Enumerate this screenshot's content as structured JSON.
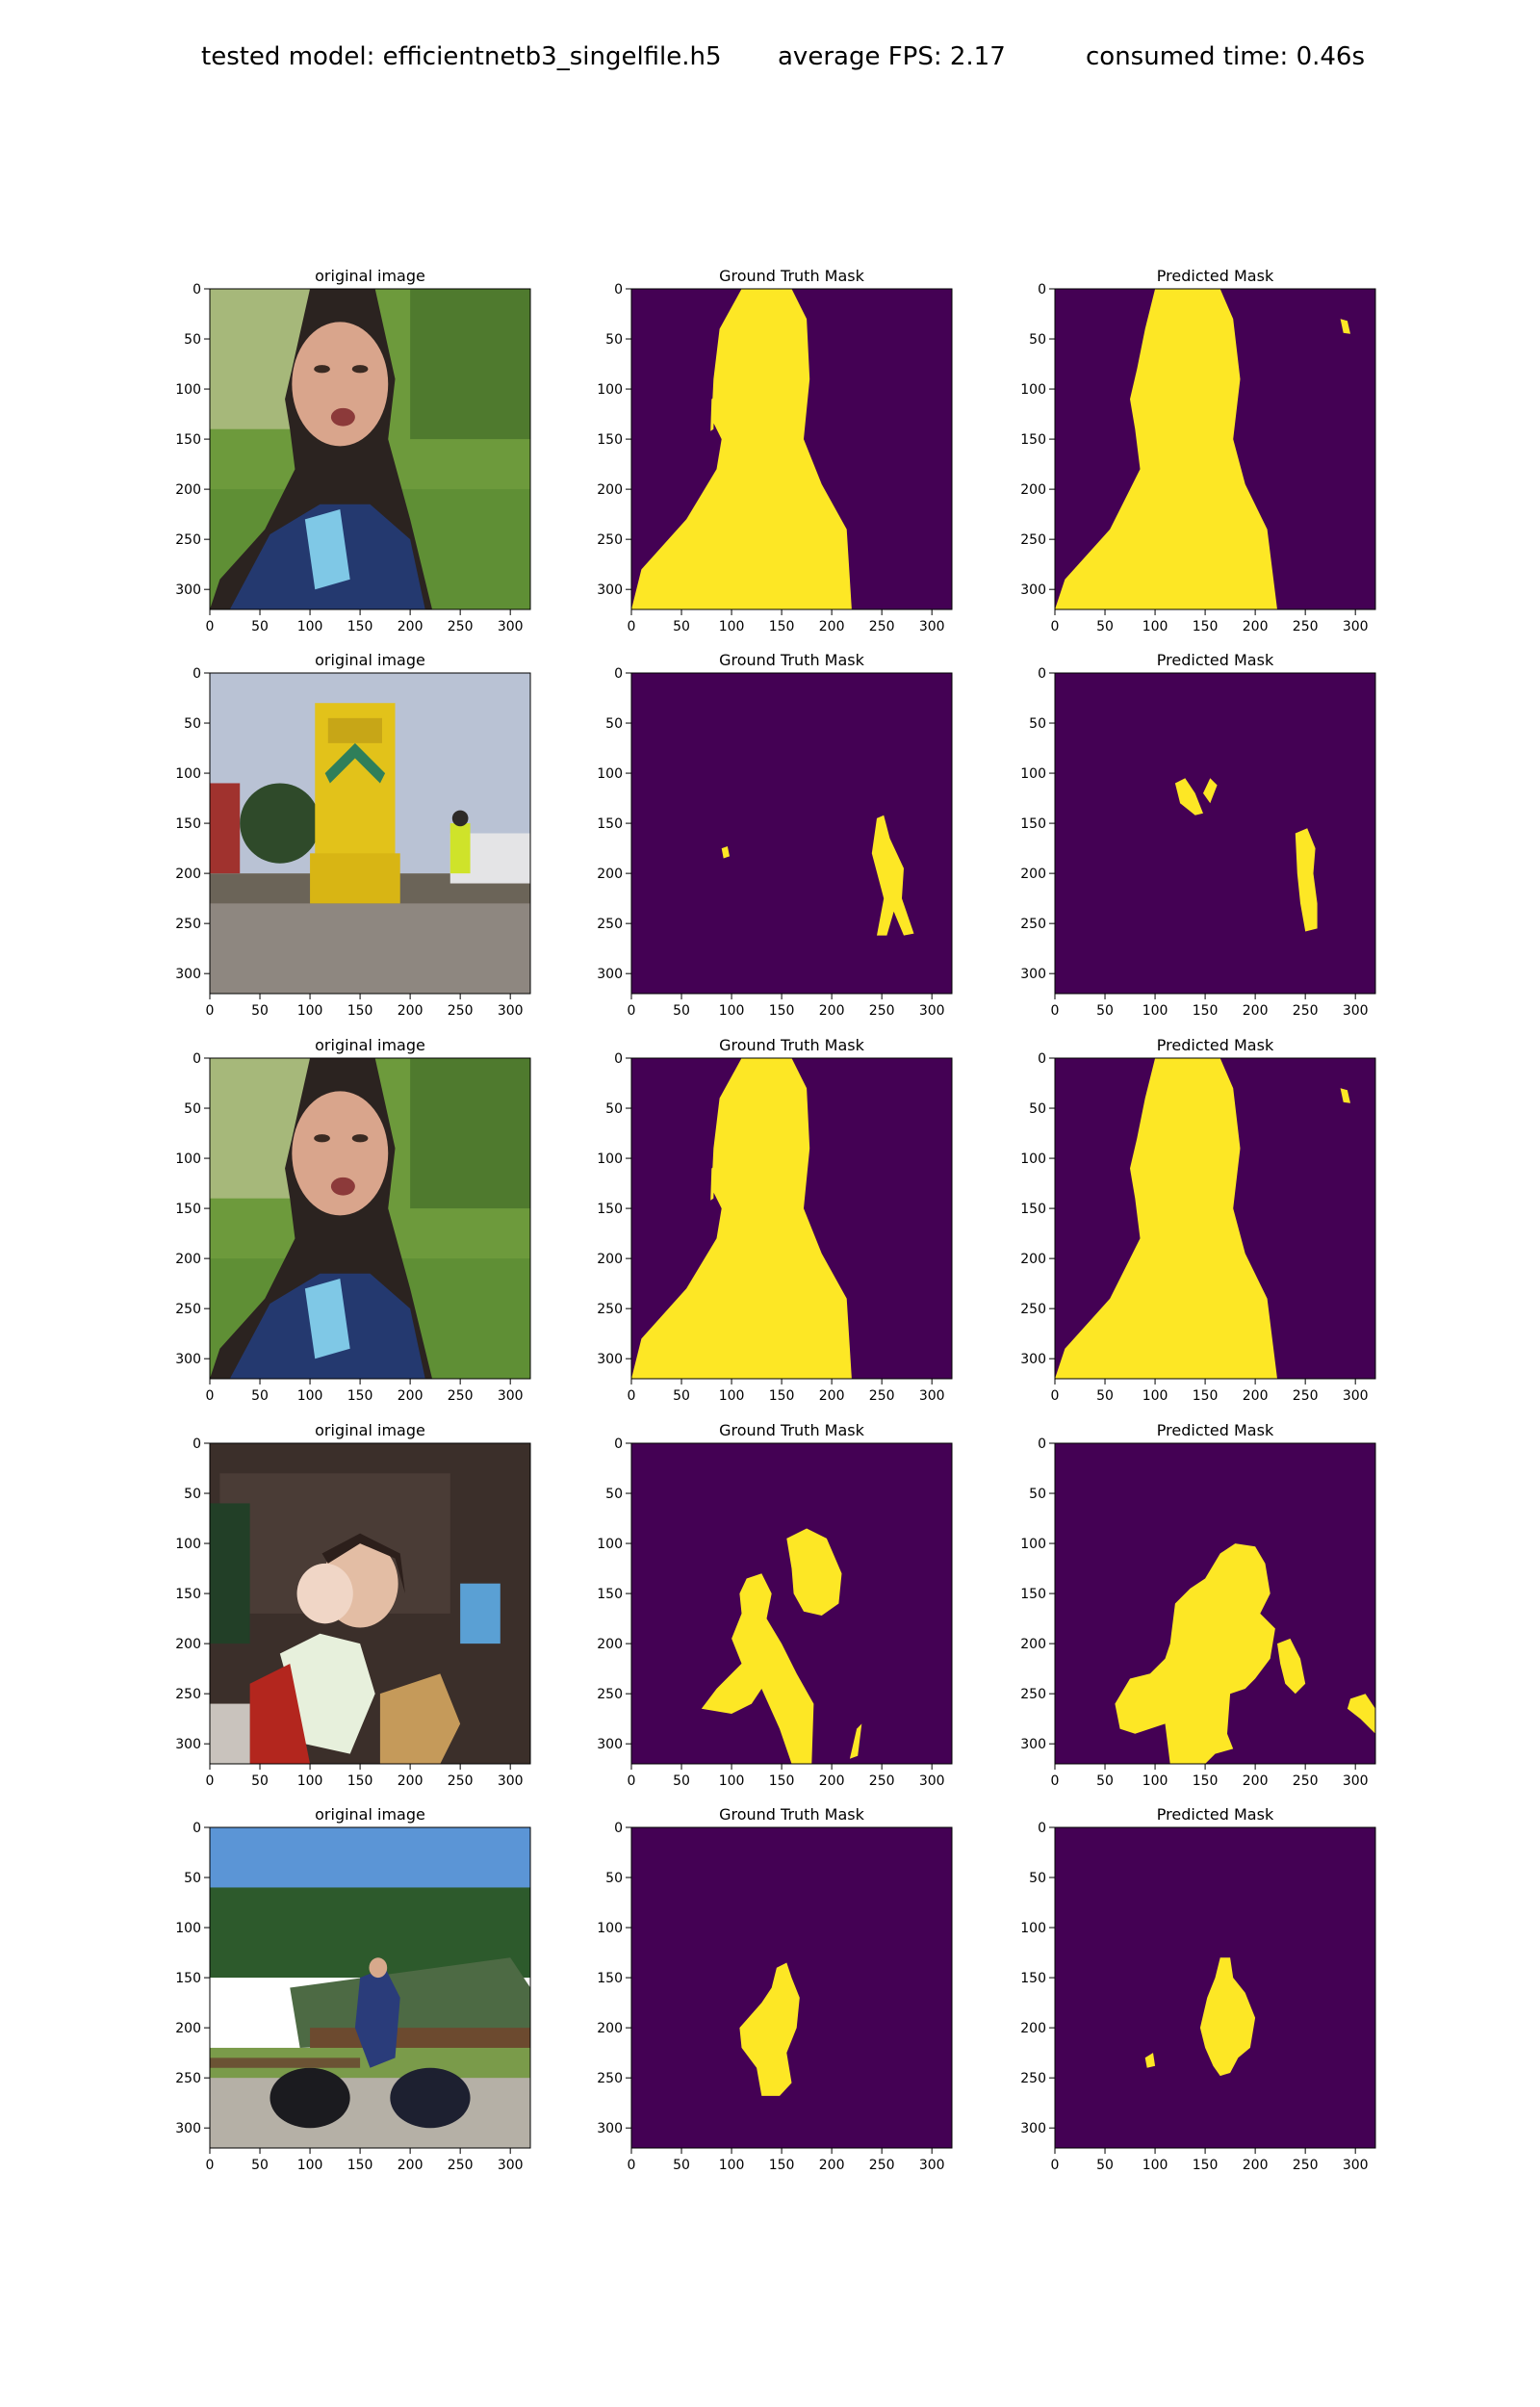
{
  "header": {
    "model": "tested model: efficientnetb3_singelfile.h5",
    "fps": "average FPS: 2.17",
    "time": "consumed time: 0.46s"
  },
  "colors": {
    "mask_background": "#440154",
    "mask_foreground": "#fde725",
    "axis": "#000000"
  },
  "panel_titles": [
    "original image",
    "Ground Truth Mask",
    "Predicted Mask"
  ],
  "chart_data": {
    "type": "image_grid",
    "rows": 5,
    "cols": 3,
    "xlim": [
      0,
      320
    ],
    "ylim": [
      320,
      0
    ],
    "xticks": [
      0,
      50,
      100,
      150,
      200,
      250,
      300
    ],
    "yticks": [
      0,
      50,
      100,
      150,
      200,
      250,
      300
    ],
    "row_images": [
      "woman close-up portrait, green background",
      "yellow locomotive on tracks with worker",
      "woman close-up portrait, green background",
      "woman holding baby with toy horse indoors",
      "man standing outdoors with motorcycle and trees"
    ],
    "masks": {
      "gt": [
        [
          [
            [
              110,
              0
            ],
            [
              160,
              0
            ],
            [
              175,
              30
            ],
            [
              178,
              90
            ],
            [
              172,
              150
            ],
            [
              190,
              195
            ],
            [
              215,
              240
            ],
            [
              220,
              320
            ],
            [
              0,
              320
            ],
            [
              10,
              280
            ],
            [
              55,
              230
            ],
            [
              85,
              180
            ],
            [
              90,
              150
            ],
            [
              80,
              130
            ],
            [
              82,
              90
            ],
            [
              88,
              40
            ]
          ],
          [
            [
              80,
              110
            ],
            [
              83,
              108
            ],
            [
              82,
              140
            ],
            [
              79,
              142
            ]
          ]
        ],
        [
          [
            [
              90,
              175
            ],
            [
              96,
              173
            ],
            [
              98,
              183
            ],
            [
              92,
              185
            ]
          ],
          [
            [
              245,
              145
            ],
            [
              252,
              142
            ],
            [
              258,
              165
            ],
            [
              272,
              195
            ],
            [
              270,
              225
            ],
            [
              282,
              260
            ],
            [
              272,
              262
            ],
            [
              262,
              238
            ],
            [
              255,
              262
            ],
            [
              245,
              262
            ],
            [
              252,
              225
            ],
            [
              240,
              180
            ]
          ]
        ],
        [
          [
            [
              110,
              0
            ],
            [
              160,
              0
            ],
            [
              175,
              30
            ],
            [
              178,
              90
            ],
            [
              172,
              150
            ],
            [
              190,
              195
            ],
            [
              215,
              240
            ],
            [
              220,
              320
            ],
            [
              0,
              320
            ],
            [
              10,
              280
            ],
            [
              55,
              230
            ],
            [
              85,
              180
            ],
            [
              90,
              150
            ],
            [
              80,
              130
            ],
            [
              82,
              90
            ],
            [
              88,
              40
            ]
          ],
          [
            [
              80,
              110
            ],
            [
              83,
              108
            ],
            [
              82,
              140
            ],
            [
              79,
              142
            ]
          ]
        ],
        [
          [
            [
              155,
              95
            ],
            [
              175,
              85
            ],
            [
              195,
              95
            ],
            [
              210,
              130
            ],
            [
              207,
              160
            ],
            [
              190,
              172
            ],
            [
              172,
              168
            ],
            [
              162,
              150
            ],
            [
              160,
              125
            ]
          ],
          [
            [
              115,
              135
            ],
            [
              130,
              130
            ],
            [
              140,
              150
            ],
            [
              135,
              175
            ],
            [
              150,
              200
            ],
            [
              165,
              230
            ],
            [
              182,
              260
            ],
            [
              180,
              320
            ],
            [
              160,
              320
            ],
            [
              148,
              285
            ],
            [
              130,
              245
            ],
            [
              120,
              260
            ],
            [
              100,
              270
            ],
            [
              70,
              265
            ],
            [
              85,
              245
            ],
            [
              110,
              220
            ],
            [
              100,
              195
            ],
            [
              110,
              170
            ],
            [
              108,
              150
            ]
          ],
          [
            [
              225,
              285
            ],
            [
              230,
              280
            ],
            [
              226,
              312
            ],
            [
              218,
              315
            ]
          ]
        ],
        [
          [
            [
              145,
              140
            ],
            [
              155,
              135
            ],
            [
              160,
              150
            ],
            [
              168,
              170
            ],
            [
              165,
              200
            ],
            [
              155,
              225
            ],
            [
              160,
              255
            ],
            [
              148,
              268
            ],
            [
              130,
              268
            ],
            [
              125,
              240
            ],
            [
              110,
              220
            ],
            [
              108,
              200
            ],
            [
              130,
              175
            ],
            [
              140,
              160
            ]
          ]
        ]
      ],
      "pred": [
        [
          [
            [
              100,
              0
            ],
            [
              165,
              0
            ],
            [
              178,
              30
            ],
            [
              185,
              90
            ],
            [
              178,
              150
            ],
            [
              190,
              195
            ],
            [
              212,
              240
            ],
            [
              222,
              320
            ],
            [
              0,
              320
            ],
            [
              10,
              290
            ],
            [
              55,
              240
            ],
            [
              85,
              180
            ],
            [
              80,
              140
            ],
            [
              75,
              110
            ],
            [
              82,
              80
            ],
            [
              90,
              40
            ]
          ],
          [
            [
              285,
              30
            ],
            [
              292,
              32
            ],
            [
              295,
              45
            ],
            [
              288,
              44
            ]
          ]
        ],
        [
          [
            [
              120,
              110
            ],
            [
              130,
              105
            ],
            [
              140,
              120
            ],
            [
              148,
              140
            ],
            [
              140,
              142
            ],
            [
              125,
              130
            ]
          ],
          [
            [
              148,
              120
            ],
            [
              155,
              105
            ],
            [
              162,
              112
            ],
            [
              155,
              130
            ]
          ],
          [
            [
              240,
              160
            ],
            [
              252,
              155
            ],
            [
              260,
              175
            ],
            [
              258,
              200
            ],
            [
              262,
              230
            ],
            [
              262,
              255
            ],
            [
              250,
              258
            ],
            [
              245,
              230
            ],
            [
              242,
              200
            ]
          ]
        ],
        [
          [
            [
              100,
              0
            ],
            [
              165,
              0
            ],
            [
              178,
              30
            ],
            [
              185,
              90
            ],
            [
              178,
              150
            ],
            [
              190,
              195
            ],
            [
              212,
              240
            ],
            [
              222,
              320
            ],
            [
              0,
              320
            ],
            [
              10,
              290
            ],
            [
              55,
              240
            ],
            [
              85,
              180
            ],
            [
              80,
              140
            ],
            [
              75,
              110
            ],
            [
              82,
              80
            ],
            [
              90,
              40
            ]
          ],
          [
            [
              285,
              30
            ],
            [
              292,
              32
            ],
            [
              295,
              45
            ],
            [
              288,
              44
            ]
          ]
        ],
        [
          [
            [
              165,
              110
            ],
            [
              180,
              100
            ],
            [
              200,
              103
            ],
            [
              210,
              120
            ],
            [
              215,
              150
            ],
            [
              205,
              170
            ],
            [
              220,
              185
            ],
            [
              215,
              215
            ],
            [
              200,
              235
            ],
            [
              190,
              245
            ],
            [
              175,
              250
            ],
            [
              172,
              290
            ],
            [
              178,
              305
            ],
            [
              160,
              310
            ],
            [
              150,
              320
            ],
            [
              115,
              320
            ],
            [
              110,
              280
            ],
            [
              80,
              290
            ],
            [
              65,
              285
            ],
            [
              60,
              260
            ],
            [
              75,
              235
            ],
            [
              95,
              230
            ],
            [
              110,
              215
            ],
            [
              115,
              200
            ],
            [
              120,
              160
            ],
            [
              135,
              145
            ],
            [
              150,
              135
            ]
          ],
          [
            [
              222,
              200
            ],
            [
              235,
              195
            ],
            [
              245,
              215
            ],
            [
              250,
              240
            ],
            [
              240,
              250
            ],
            [
              230,
              240
            ],
            [
              225,
              220
            ]
          ],
          [
            [
              295,
              255
            ],
            [
              310,
              250
            ],
            [
              320,
              265
            ],
            [
              320,
              290
            ],
            [
              305,
              275
            ],
            [
              292,
              265
            ]
          ]
        ],
        [
          [
            [
              165,
              130
            ],
            [
              175,
              130
            ],
            [
              178,
              150
            ],
            [
              190,
              165
            ],
            [
              200,
              190
            ],
            [
              195,
              220
            ],
            [
              183,
              230
            ],
            [
              175,
              245
            ],
            [
              165,
              248
            ],
            [
              158,
              238
            ],
            [
              150,
              220
            ],
            [
              145,
              200
            ],
            [
              152,
              170
            ],
            [
              160,
              150
            ]
          ],
          [
            [
              90,
              230
            ],
            [
              98,
              225
            ],
            [
              100,
              238
            ],
            [
              92,
              240
            ]
          ]
        ]
      ]
    }
  }
}
